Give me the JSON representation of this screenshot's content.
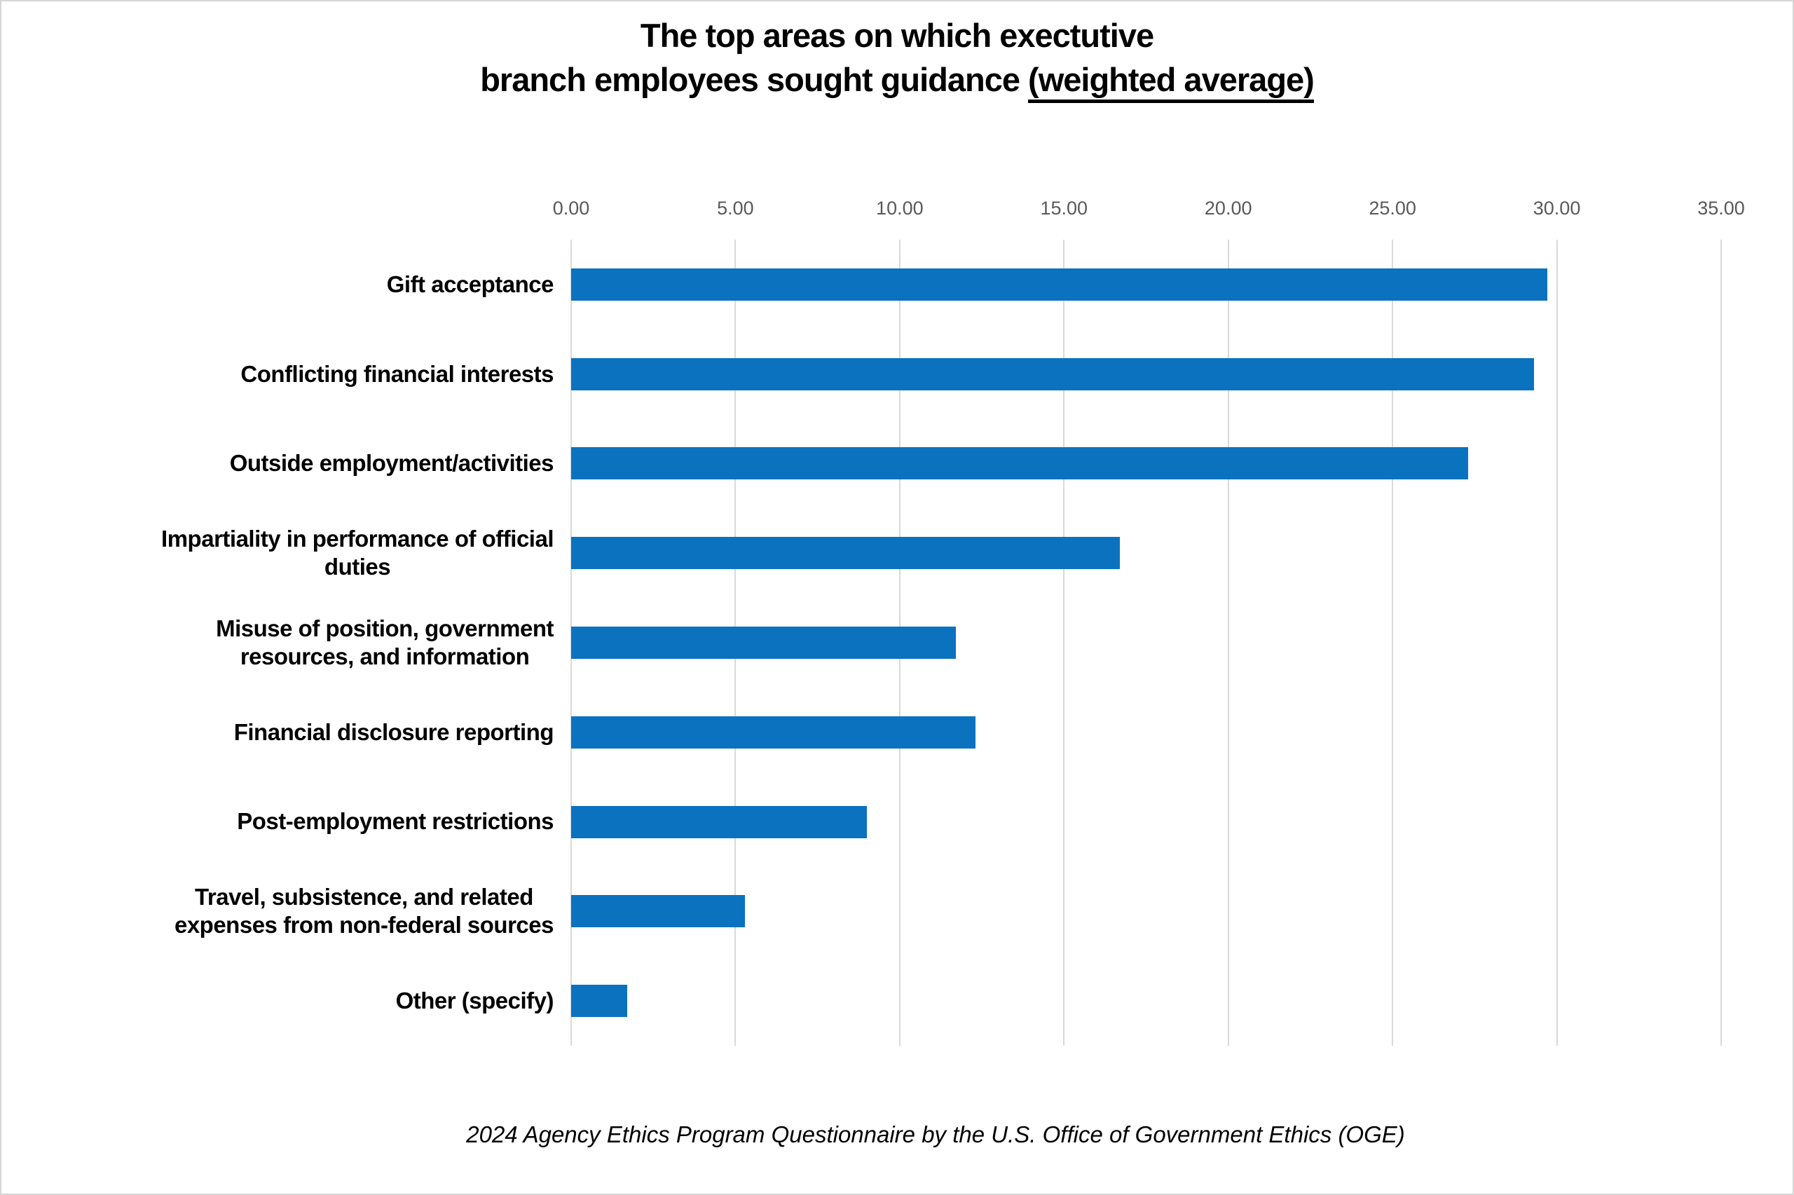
{
  "title": {
    "line1": "The top areas on which exectutive",
    "line2_prefix": "branch employees sought guidance ",
    "line2_underlined": "(weighted average)"
  },
  "footer": {
    "text": "2024 Agency Ethics Program Questionnaire by the U.S. Office of Government Ethics (OGE)"
  },
  "chart_data": {
    "type": "bar",
    "orientation": "horizontal",
    "title": "The top areas on which exectutive branch employees sought guidance (weighted average)",
    "categories": [
      "Gift acceptance",
      "Conflicting financial interests",
      "Outside employment/activities",
      "Impartiality in performance of official duties",
      "Misuse of position, government resources, and information",
      "Financial disclosure reporting",
      "Post-employment restrictions",
      "Travel, subsistence, and related expenses from non-federal sources",
      "Other (specify)"
    ],
    "label_lines": [
      [
        "Gift acceptance"
      ],
      [
        "Conflicting financial interests"
      ],
      [
        "Outside employment/activities"
      ],
      [
        "Impartiality in performance of official",
        "duties"
      ],
      [
        "Misuse of position, government",
        "resources, and information"
      ],
      [
        "Financial disclosure reporting"
      ],
      [
        "Post-employment restrictions"
      ],
      [
        "Travel, subsistence, and related",
        "expenses from non-federal sources"
      ],
      [
        "Other (specify)"
      ]
    ],
    "values": [
      29.7,
      29.3,
      27.3,
      16.7,
      11.7,
      12.3,
      9.0,
      5.3,
      1.7
    ],
    "x_ticks": [
      0,
      5,
      10,
      15,
      20,
      25,
      30,
      35
    ],
    "x_tick_labels": [
      "0.00",
      "5.00",
      "10.00",
      "15.00",
      "20.00",
      "25.00",
      "30.00",
      "35.00"
    ],
    "xlim": [
      0,
      35
    ],
    "axis_labels_position": "top",
    "grid": "vertical",
    "legend": "none",
    "bar_color": "#0b72c0",
    "gridline_color": "#d9d9d9",
    "tick_label_color": "#595959"
  }
}
